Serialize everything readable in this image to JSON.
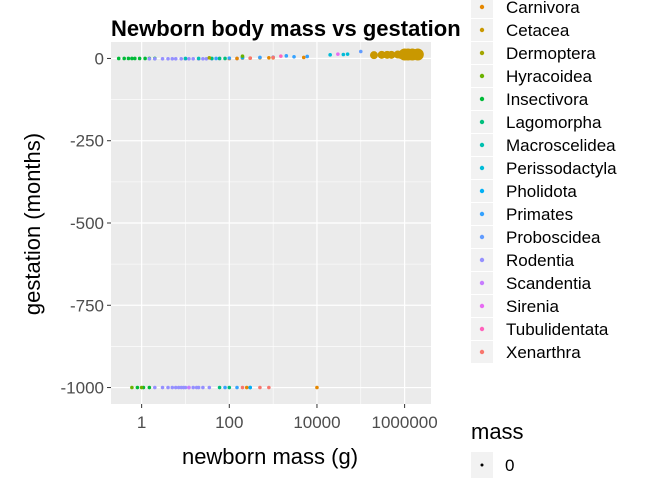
{
  "chart_data": {
    "type": "scatter",
    "title": "Newborn body mass vs gestation",
    "xlabel": "newborn mass (g)",
    "ylabel": "gestation (months)",
    "xscale": "log10",
    "xlim": [
      0.2,
      4000000
    ],
    "ylim": [
      -1050,
      50
    ],
    "x_ticks": [
      {
        "value": 1,
        "label": "1"
      },
      {
        "value": 100,
        "label": "100"
      },
      {
        "value": 10000,
        "label": "10000"
      },
      {
        "value": 1000000,
        "label": "1000000"
      }
    ],
    "y_ticks": [
      {
        "value": 0,
        "label": "0"
      },
      {
        "value": -250,
        "label": "-250"
      },
      {
        "value": -500,
        "label": "-500"
      },
      {
        "value": -750,
        "label": "-750"
      },
      {
        "value": -1000,
        "label": "-1000"
      }
    ],
    "grid": true,
    "legend_position": "right",
    "color_legend": [
      {
        "label": "Carnivora",
        "color": "#E58700"
      },
      {
        "label": "Cetacea",
        "color": "#C99800"
      },
      {
        "label": "Dermoptera",
        "color": "#A3A500"
      },
      {
        "label": "Hyracoidea",
        "color": "#6BB100"
      },
      {
        "label": "Insectivora",
        "color": "#00BA38"
      },
      {
        "label": "Lagomorpha",
        "color": "#00BF7D"
      },
      {
        "label": "Macroscelidea",
        "color": "#00C0AF"
      },
      {
        "label": "Perissodactyla",
        "color": "#00BCD8"
      },
      {
        "label": "Pholidota",
        "color": "#00B0F6"
      },
      {
        "label": "Primates",
        "color": "#35A2FF"
      },
      {
        "label": "Proboscidea",
        "color": "#619CFF"
      },
      {
        "label": "Rodentia",
        "color": "#9590FF"
      },
      {
        "label": "Scandentia",
        "color": "#C77CFF"
      },
      {
        "label": "Sirenia",
        "color": "#E76BF3"
      },
      {
        "label": "Tubulidentata",
        "color": "#FF62BC"
      },
      {
        "label": "Xenarthra",
        "color": "#F8766D"
      }
    ],
    "size_legend": {
      "title": "mass",
      "entries": [
        {
          "label": "0"
        }
      ]
    },
    "series": [
      {
        "order": "Insectivora",
        "points": [
          [
            0.3,
            0
          ],
          [
            0.4,
            0
          ],
          [
            0.5,
            0
          ],
          [
            0.6,
            0
          ],
          [
            0.7,
            0
          ],
          [
            0.9,
            0
          ],
          [
            1.2,
            0
          ],
          [
            1.5,
            0
          ],
          [
            2,
            0
          ],
          [
            0.8,
            -1000
          ],
          [
            1.1,
            -1000
          ],
          [
            1.5,
            -1000
          ]
        ]
      },
      {
        "order": "Hyracoidea",
        "points": [
          [
            0.6,
            -1000
          ],
          [
            1,
            -1000
          ]
        ]
      },
      {
        "order": "Rodentia",
        "points": [
          [
            1.5,
            -1
          ],
          [
            2,
            -1
          ],
          [
            3,
            -1
          ],
          [
            4,
            -1
          ],
          [
            5,
            -1
          ],
          [
            6,
            -1
          ],
          [
            8,
            -1
          ],
          [
            10,
            -1
          ],
          [
            12,
            -1
          ],
          [
            15,
            -1
          ],
          [
            20,
            -1
          ],
          [
            25,
            -1
          ],
          [
            30,
            -1
          ],
          [
            40,
            -1
          ],
          [
            60,
            0
          ],
          [
            100,
            0
          ],
          [
            150,
            0
          ],
          [
            2,
            -1000
          ],
          [
            3,
            -1000
          ],
          [
            4,
            -1000
          ],
          [
            5,
            -1000
          ],
          [
            6,
            -1000
          ],
          [
            7,
            -1000
          ],
          [
            8,
            -1000
          ],
          [
            9,
            -1000
          ],
          [
            10,
            -1000
          ],
          [
            12,
            -1000
          ],
          [
            15,
            -1000
          ],
          [
            18,
            -1000
          ],
          [
            20,
            -1000
          ],
          [
            25,
            -1000
          ],
          [
            35,
            -1000
          ]
        ]
      },
      {
        "order": "Scandentia",
        "points": [
          [
            10,
            -1
          ],
          [
            20,
            -1
          ],
          [
            12,
            -1000
          ]
        ]
      },
      {
        "order": "Lagomorpha",
        "points": [
          [
            40,
            0
          ],
          [
            60,
            0
          ],
          [
            80,
            0
          ],
          [
            100,
            -1000
          ],
          [
            60,
            -1000
          ]
        ]
      },
      {
        "order": "Macroscelidea",
        "points": [
          [
            10,
            0
          ],
          [
            20,
            0
          ]
        ]
      },
      {
        "order": "Carnivora",
        "points": [
          [
            100,
            0
          ],
          [
            150,
            0
          ],
          [
            200,
            1
          ],
          [
            300,
            1
          ],
          [
            500,
            2
          ],
          [
            800,
            2
          ],
          [
            1000,
            2
          ],
          [
            5000,
            3
          ],
          [
            10000,
            -1000
          ],
          [
            250,
            -1000
          ]
        ]
      },
      {
        "order": "Primates",
        "points": [
          [
            50,
            0
          ],
          [
            100,
            1
          ],
          [
            200,
            2
          ],
          [
            500,
            3
          ],
          [
            1000,
            4
          ],
          [
            3000,
            5
          ],
          [
            6000,
            6
          ],
          [
            2000,
            8
          ],
          [
            300,
            -1000
          ],
          [
            150,
            -1000
          ],
          [
            80,
            -1000
          ]
        ]
      },
      {
        "order": "Xenarthra",
        "points": [
          [
            300,
            1
          ],
          [
            1000,
            3
          ],
          [
            200,
            -1000
          ],
          [
            500,
            -1000
          ],
          [
            800,
            -1000
          ]
        ]
      },
      {
        "order": "Pholidota",
        "points": [
          [
            200,
            4
          ],
          [
            300,
            -1000
          ]
        ]
      },
      {
        "order": "Tubulidentata",
        "points": [
          [
            1500,
            7
          ]
        ]
      },
      {
        "order": "Sirenia",
        "points": [
          [
            30000,
            13
          ]
        ]
      },
      {
        "order": "Perissodactyla",
        "points": [
          [
            20000,
            11
          ],
          [
            40000,
            12
          ],
          [
            50000,
            13
          ]
        ]
      },
      {
        "order": "Dermoptera",
        "points": [
          [
            35,
            2
          ]
        ]
      },
      {
        "order": "Proboscidea",
        "points": [
          [
            100000,
            21
          ]
        ]
      },
      {
        "order": "Hyracoidea",
        "points": [
          [
            200,
            7
          ]
        ]
      },
      {
        "order": "Cetacea",
        "points": [
          [
            200000,
            10
          ],
          [
            300000,
            11
          ],
          [
            500000,
            11
          ],
          [
            700000,
            12
          ],
          [
            1000000,
            12
          ],
          [
            1500000,
            12
          ],
          [
            2000000,
            12
          ],
          [
            1200000,
            12
          ],
          [
            800000,
            11
          ],
          [
            400000,
            11
          ]
        ]
      }
    ]
  }
}
